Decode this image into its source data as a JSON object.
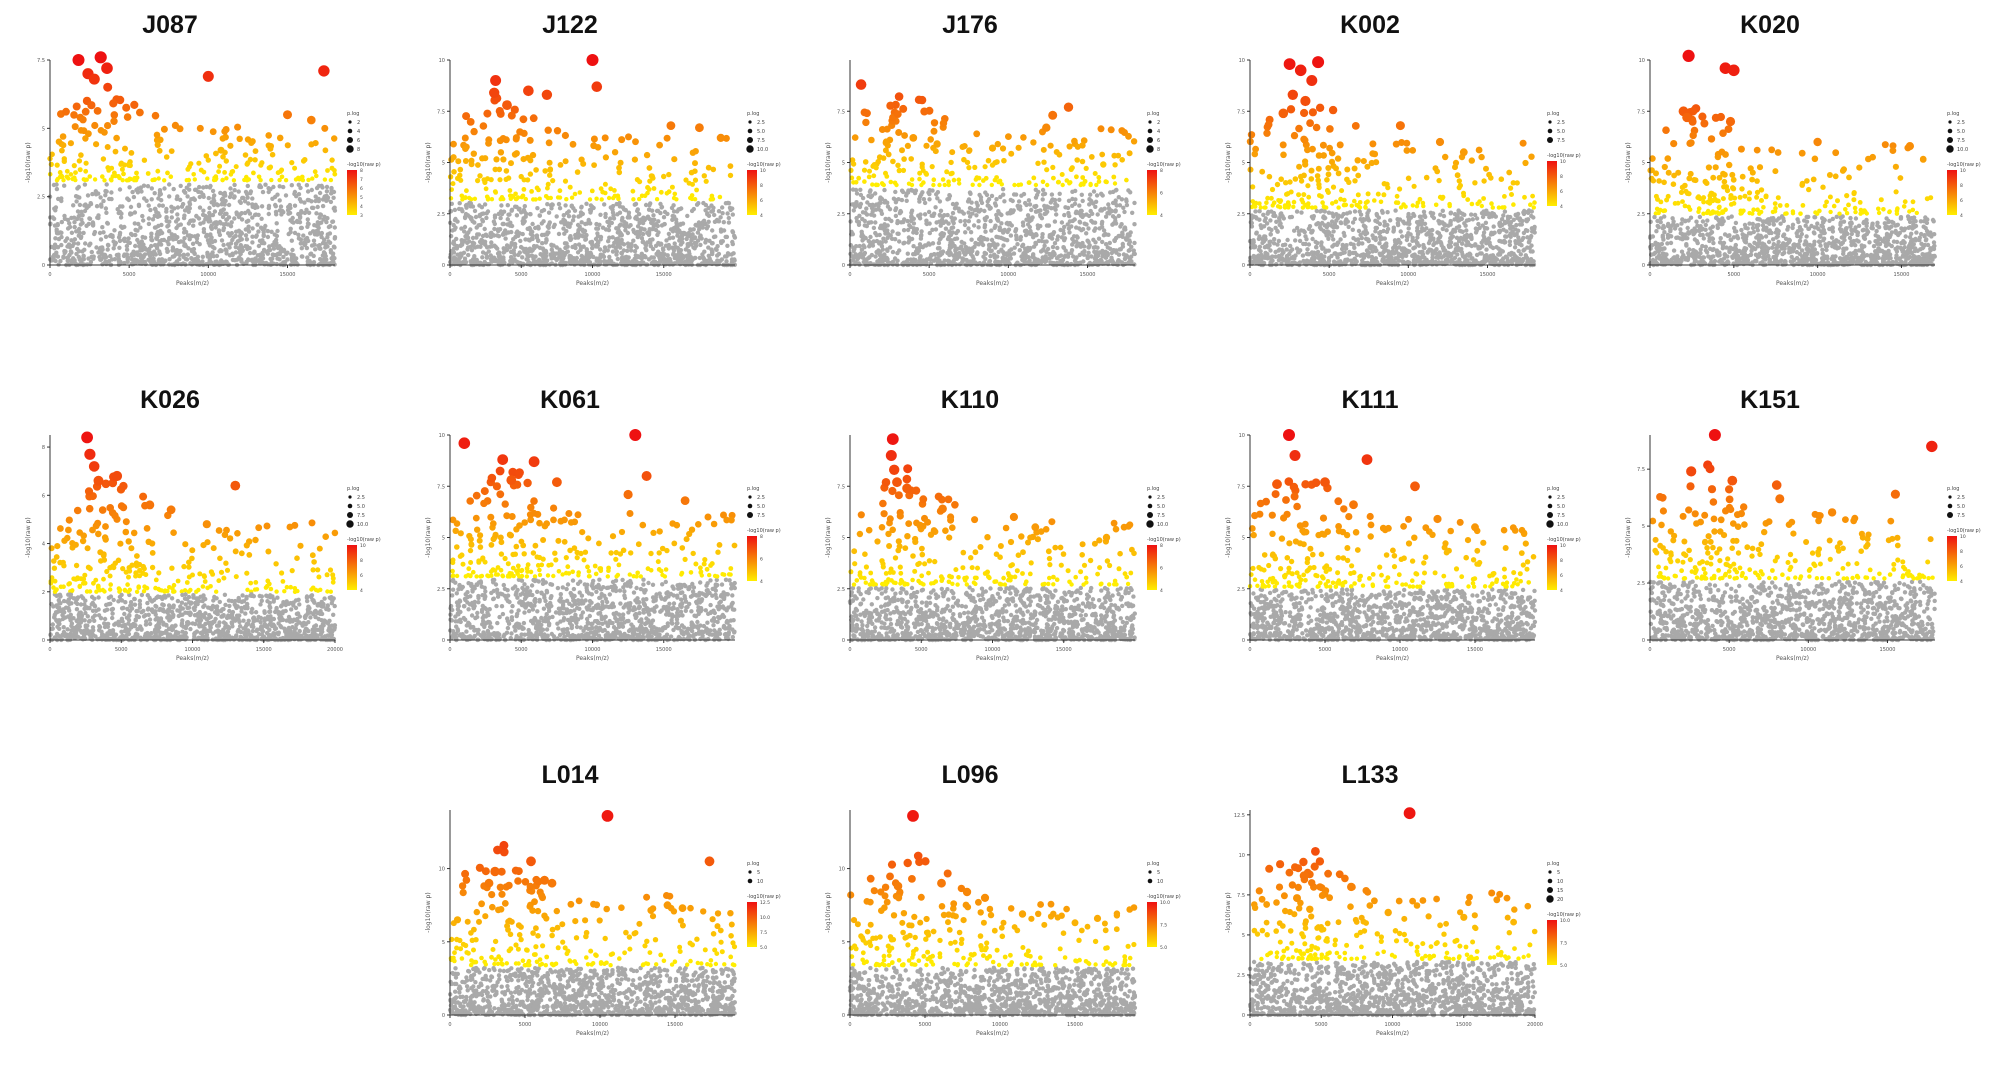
{
  "figure": {
    "colors": {
      "significant_low": "#ffee00",
      "significant_high": "#ee1111",
      "nonsignificant": "#a9a9a9",
      "axis": "#333333"
    }
  },
  "chart_data": [
    {
      "type": "scatter",
      "title": "J087",
      "xlabel": "Peaks(m/z)",
      "ylabel": "-log10(raw p)",
      "xlim": [
        0,
        18000
      ],
      "ylim": [
        0,
        7.5
      ],
      "xticks": [
        0,
        5000,
        10000,
        15000
      ],
      "yticks": [
        0,
        2.5,
        5,
        7.5
      ],
      "threshold": 3.1,
      "peak_count": 1400,
      "seed": 11,
      "legend": {
        "size_title": "p.log",
        "size_labels": [
          "2",
          "4",
          "6",
          "8"
        ],
        "color_title": "-log10(raw p)",
        "color_labels": [
          "8",
          "7",
          "6",
          "5",
          "4",
          "3"
        ]
      },
      "highlights": [
        [
          1800,
          7.5
        ],
        [
          3200,
          7.6
        ],
        [
          2400,
          7.0
        ],
        [
          3600,
          7.2
        ],
        [
          2800,
          6.8
        ],
        [
          10000,
          6.9
        ],
        [
          17300,
          7.1
        ],
        [
          15000,
          5.5
        ],
        [
          16500,
          5.3
        ],
        [
          10800,
          4.2
        ]
      ]
    },
    {
      "type": "scatter",
      "title": "J122",
      "xlabel": "Peaks(m/z)",
      "ylabel": "-log10(raw p)",
      "xlim": [
        0,
        20000
      ],
      "ylim": [
        0,
        10
      ],
      "xticks": [
        0,
        5000,
        10000,
        15000
      ],
      "yticks": [
        0,
        2.5,
        5,
        7.5,
        10
      ],
      "threshold": 3.2,
      "peak_count": 1400,
      "seed": 23,
      "legend": {
        "size_title": "p.log",
        "size_labels": [
          "2.5",
          "5.0",
          "7.5",
          "10.0"
        ],
        "color_title": "-log10(raw p)",
        "color_labels": [
          "10",
          "8",
          "6",
          "4"
        ]
      },
      "highlights": [
        [
          10000,
          10.0
        ],
        [
          10300,
          8.7
        ],
        [
          3200,
          9.0
        ],
        [
          3100,
          8.4
        ],
        [
          5500,
          8.5
        ],
        [
          6800,
          8.3
        ],
        [
          4000,
          7.8
        ],
        [
          15500,
          6.8
        ],
        [
          17500,
          6.7
        ],
        [
          19000,
          6.2
        ]
      ]
    },
    {
      "type": "scatter",
      "title": "J176",
      "xlabel": "Peaks(m/z)",
      "ylabel": "-log10(raw p)",
      "xlim": [
        0,
        18000
      ],
      "ylim": [
        0,
        10
      ],
      "xticks": [
        0,
        5000,
        10000,
        15000
      ],
      "yticks": [
        0,
        2.5,
        5,
        7.5
      ],
      "threshold": 3.9,
      "peak_count": 1400,
      "seed": 37,
      "legend": {
        "size_title": "p.log",
        "size_labels": [
          "2",
          "4",
          "6",
          "8"
        ],
        "color_title": "-log10(raw p)",
        "color_labels": [
          "8",
          "6",
          "4"
        ]
      },
      "highlights": [
        [
          700,
          8.8
        ],
        [
          12400,
          6.7
        ],
        [
          12800,
          7.3
        ],
        [
          13800,
          7.7
        ],
        [
          4000,
          6.2
        ],
        [
          5500,
          5.9
        ],
        [
          9000,
          5.7
        ],
        [
          16000,
          4.9
        ]
      ]
    },
    {
      "type": "scatter",
      "title": "K002",
      "xlabel": "Peaks(m/z)",
      "ylabel": "-log10(raw p)",
      "xlim": [
        0,
        18000
      ],
      "ylim": [
        0,
        10
      ],
      "xticks": [
        0,
        5000,
        10000,
        15000
      ],
      "yticks": [
        0,
        2.5,
        5,
        7.5,
        10
      ],
      "threshold": 2.8,
      "peak_count": 1400,
      "seed": 41,
      "legend": {
        "size_title": "p.log",
        "size_labels": [
          "2.5",
          "5.0",
          "7.5"
        ],
        "color_title": "-log10(raw p)",
        "color_labels": [
          "10",
          "8",
          "6",
          "4"
        ]
      },
      "highlights": [
        [
          2500,
          9.8
        ],
        [
          4300,
          9.9
        ],
        [
          3200,
          9.5
        ],
        [
          3900,
          9.0
        ],
        [
          2700,
          8.3
        ],
        [
          3500,
          8.0
        ],
        [
          2100,
          7.4
        ],
        [
          9500,
          6.8
        ],
        [
          12000,
          6.0
        ],
        [
          13500,
          5.5
        ]
      ]
    },
    {
      "type": "scatter",
      "title": "K020",
      "xlabel": "Peaks(m/z)",
      "ylabel": "-log10(raw p)",
      "xlim": [
        0,
        17000
      ],
      "ylim": [
        0,
        10
      ],
      "xticks": [
        0,
        5000,
        10000,
        15000
      ],
      "yticks": [
        0,
        2.5,
        5,
        7.5,
        10
      ],
      "threshold": 2.5,
      "peak_count": 1400,
      "seed": 53,
      "legend": {
        "size_title": "p.log",
        "size_labels": [
          "2.5",
          "5.0",
          "7.5",
          "10.0"
        ],
        "color_title": "-log10(raw p)",
        "color_labels": [
          "10",
          "8",
          "6",
          "4"
        ]
      },
      "highlights": [
        [
          2300,
          10.2
        ],
        [
          4500,
          9.6
        ],
        [
          5000,
          9.5
        ],
        [
          2000,
          7.5
        ],
        [
          2200,
          7.2
        ],
        [
          4800,
          7.0
        ],
        [
          10000,
          6.0
        ],
        [
          15500,
          5.8
        ]
      ]
    },
    {
      "type": "scatter",
      "title": "K026",
      "xlabel": "Peaks(m/z)",
      "ylabel": "-log10(raw p)",
      "xlim": [
        0,
        20000
      ],
      "ylim": [
        0,
        8.5
      ],
      "xticks": [
        0,
        5000,
        10000,
        15000,
        20000
      ],
      "yticks": [
        0,
        2,
        4,
        6,
        8
      ],
      "threshold": 2.0,
      "peak_count": 1400,
      "seed": 67,
      "legend": {
        "size_title": "p.log",
        "size_labels": [
          "2.5",
          "5.0",
          "7.5",
          "10.0"
        ],
        "color_title": "-log10(raw p)",
        "color_labels": [
          "10",
          "8",
          "6",
          "4"
        ]
      },
      "highlights": [
        [
          2600,
          8.4
        ],
        [
          2800,
          7.7
        ],
        [
          3100,
          7.2
        ],
        [
          3400,
          6.6
        ],
        [
          4700,
          6.8
        ],
        [
          13000,
          6.4
        ],
        [
          8500,
          5.4
        ],
        [
          7000,
          5.6
        ],
        [
          11000,
          4.8
        ]
      ]
    },
    {
      "type": "scatter",
      "title": "K061",
      "xlabel": "Peaks(m/z)",
      "ylabel": "-log10(raw p)",
      "xlim": [
        0,
        20000
      ],
      "ylim": [
        0,
        10
      ],
      "xticks": [
        0,
        5000,
        10000,
        15000
      ],
      "yticks": [
        0,
        2.5,
        5,
        7.5,
        10
      ],
      "threshold": 3.1,
      "peak_count": 1400,
      "seed": 71,
      "legend": {
        "size_title": "p.log",
        "size_labels": [
          "2.5",
          "5.0",
          "7.5"
        ],
        "color_title": "-log10(raw p)",
        "color_labels": [
          "8",
          "6",
          "4"
        ]
      },
      "highlights": [
        [
          1000,
          9.6
        ],
        [
          13000,
          10.0
        ],
        [
          3700,
          8.8
        ],
        [
          5900,
          8.7
        ],
        [
          4300,
          7.8
        ],
        [
          13800,
          8.0
        ],
        [
          7500,
          7.7
        ],
        [
          12500,
          7.1
        ],
        [
          16500,
          6.8
        ]
      ]
    },
    {
      "type": "scatter",
      "title": "K110",
      "xlabel": "Peaks(m/z)",
      "ylabel": "-log10(raw p)",
      "xlim": [
        0,
        20000
      ],
      "ylim": [
        0,
        10
      ],
      "xticks": [
        0,
        5000,
        10000,
        15000
      ],
      "yticks": [
        0,
        2.5,
        5,
        7.5
      ],
      "threshold": 2.7,
      "peak_count": 1400,
      "seed": 83,
      "legend": {
        "size_title": "p.log",
        "size_labels": [
          "2.5",
          "5.0",
          "7.5",
          "10.0"
        ],
        "color_title": "-log10(raw p)",
        "color_labels": [
          "8",
          "6",
          "4"
        ]
      },
      "highlights": [
        [
          3000,
          9.8
        ],
        [
          2900,
          9.0
        ],
        [
          3100,
          8.3
        ],
        [
          3300,
          7.7
        ],
        [
          4000,
          7.4
        ],
        [
          6500,
          6.4
        ],
        [
          11500,
          6.0
        ],
        [
          13000,
          5.5
        ],
        [
          18000,
          5.0
        ]
      ]
    },
    {
      "type": "scatter",
      "title": "K111",
      "xlabel": "Peaks(m/z)",
      "ylabel": "-log10(raw p)",
      "xlim": [
        0,
        19000
      ],
      "ylim": [
        0,
        10
      ],
      "xticks": [
        0,
        5000,
        10000,
        15000
      ],
      "yticks": [
        0,
        2.5,
        5,
        7.5,
        10
      ],
      "threshold": 2.6,
      "peak_count": 1400,
      "seed": 97,
      "legend": {
        "size_title": "p.log",
        "size_labels": [
          "2.5",
          "5.0",
          "7.5",
          "10.0"
        ],
        "color_title": "-log10(raw p)",
        "color_labels": [
          "10",
          "8",
          "6",
          "4"
        ]
      },
      "highlights": [
        [
          2600,
          10.0
        ],
        [
          3000,
          9.0
        ],
        [
          7800,
          8.8
        ],
        [
          1800,
          7.6
        ],
        [
          5000,
          7.7
        ],
        [
          11000,
          7.5
        ],
        [
          6900,
          6.6
        ],
        [
          12500,
          5.9
        ],
        [
          15000,
          5.5
        ]
      ]
    },
    {
      "type": "scatter",
      "title": "K151",
      "xlabel": "Peaks(m/z)",
      "ylabel": "-log10(raw p)",
      "xlim": [
        0,
        18000
      ],
      "ylim": [
        0,
        9
      ],
      "xticks": [
        0,
        5000,
        10000,
        15000
      ],
      "yticks": [
        0,
        2.5,
        5,
        7.5
      ],
      "threshold": 2.7,
      "peak_count": 1400,
      "seed": 101,
      "legend": {
        "size_title": "p.log",
        "size_labels": [
          "2.5",
          "5.0",
          "7.5"
        ],
        "color_title": "-log10(raw p)",
        "color_labels": [
          "10",
          "8",
          "6",
          "4"
        ]
      },
      "highlights": [
        [
          4100,
          9.0
        ],
        [
          17800,
          8.5
        ],
        [
          2600,
          7.4
        ],
        [
          5200,
          7.0
        ],
        [
          8000,
          6.8
        ],
        [
          15500,
          6.4
        ],
        [
          11500,
          5.6
        ],
        [
          8200,
          6.2
        ]
      ]
    },
    {
      "type": "scatter",
      "title": "L014",
      "xlabel": "Peaks(m/z)",
      "ylabel": "-log10(raw p)",
      "xlim": [
        0,
        19000
      ],
      "ylim": [
        0,
        14
      ],
      "xticks": [
        0,
        5000,
        10000,
        15000
      ],
      "yticks": [
        0,
        5,
        10
      ],
      "threshold": 3.4,
      "peak_count": 1400,
      "seed": 113,
      "legend": {
        "size_title": "p.log",
        "size_labels": [
          "5",
          "10"
        ],
        "color_title": "-log10(raw p)",
        "color_labels": [
          "12.5",
          "10.0",
          "7.5",
          "5.0"
        ]
      },
      "highlights": [
        [
          10500,
          13.6
        ],
        [
          5400,
          10.5
        ],
        [
          17300,
          10.5
        ],
        [
          3000,
          9.8
        ],
        [
          6300,
          9.2
        ],
        [
          2600,
          9.0
        ],
        [
          6800,
          9.0
        ],
        [
          14500,
          7.5
        ],
        [
          15500,
          7.3
        ],
        [
          500,
          6.5
        ]
      ]
    },
    {
      "type": "scatter",
      "title": "L096",
      "xlabel": "Peaks(m/z)",
      "ylabel": "-log10(raw p)",
      "xlim": [
        0,
        19000
      ],
      "ylim": [
        0,
        14
      ],
      "xticks": [
        0,
        5000,
        10000,
        15000
      ],
      "yticks": [
        0,
        5,
        10
      ],
      "threshold": 3.4,
      "peak_count": 1400,
      "seed": 127,
      "legend": {
        "size_title": "p.log",
        "size_labels": [
          "5",
          "10"
        ],
        "color_title": "-log10(raw p)",
        "color_labels": [
          "10.0",
          "7.5",
          "5.0"
        ]
      },
      "highlights": [
        [
          4200,
          13.6
        ],
        [
          3200,
          8.8
        ],
        [
          6100,
          9.0
        ],
        [
          7800,
          8.4
        ],
        [
          9000,
          8.0
        ],
        [
          11500,
          6.9
        ],
        [
          15000,
          6.3
        ],
        [
          16500,
          6.6
        ]
      ]
    },
    {
      "type": "scatter",
      "title": "L133",
      "xlabel": "Peaks(m/z)",
      "ylabel": "-log10(raw p)",
      "xlim": [
        0,
        20000
      ],
      "ylim": [
        0,
        12.8
      ],
      "xticks": [
        0,
        5000,
        10000,
        15000,
        20000
      ],
      "yticks": [
        0,
        2.5,
        5,
        7.5,
        10,
        12.5
      ],
      "threshold": 3.5,
      "peak_count": 1400,
      "seed": 131,
      "legend": {
        "size_title": "p.log",
        "size_labels": [
          "5",
          "10",
          "15",
          "20"
        ],
        "color_title": "-log10(raw p)",
        "color_labels": [
          "10.0",
          "7.5",
          "5.0"
        ]
      },
      "highlights": [
        [
          11200,
          12.6
        ],
        [
          3800,
          8.7
        ],
        [
          7100,
          8.0
        ],
        [
          3300,
          7.3
        ],
        [
          4200,
          6.6
        ],
        [
          9700,
          6.4
        ],
        [
          15000,
          6.1
        ],
        [
          18500,
          5.8
        ]
      ]
    }
  ]
}
